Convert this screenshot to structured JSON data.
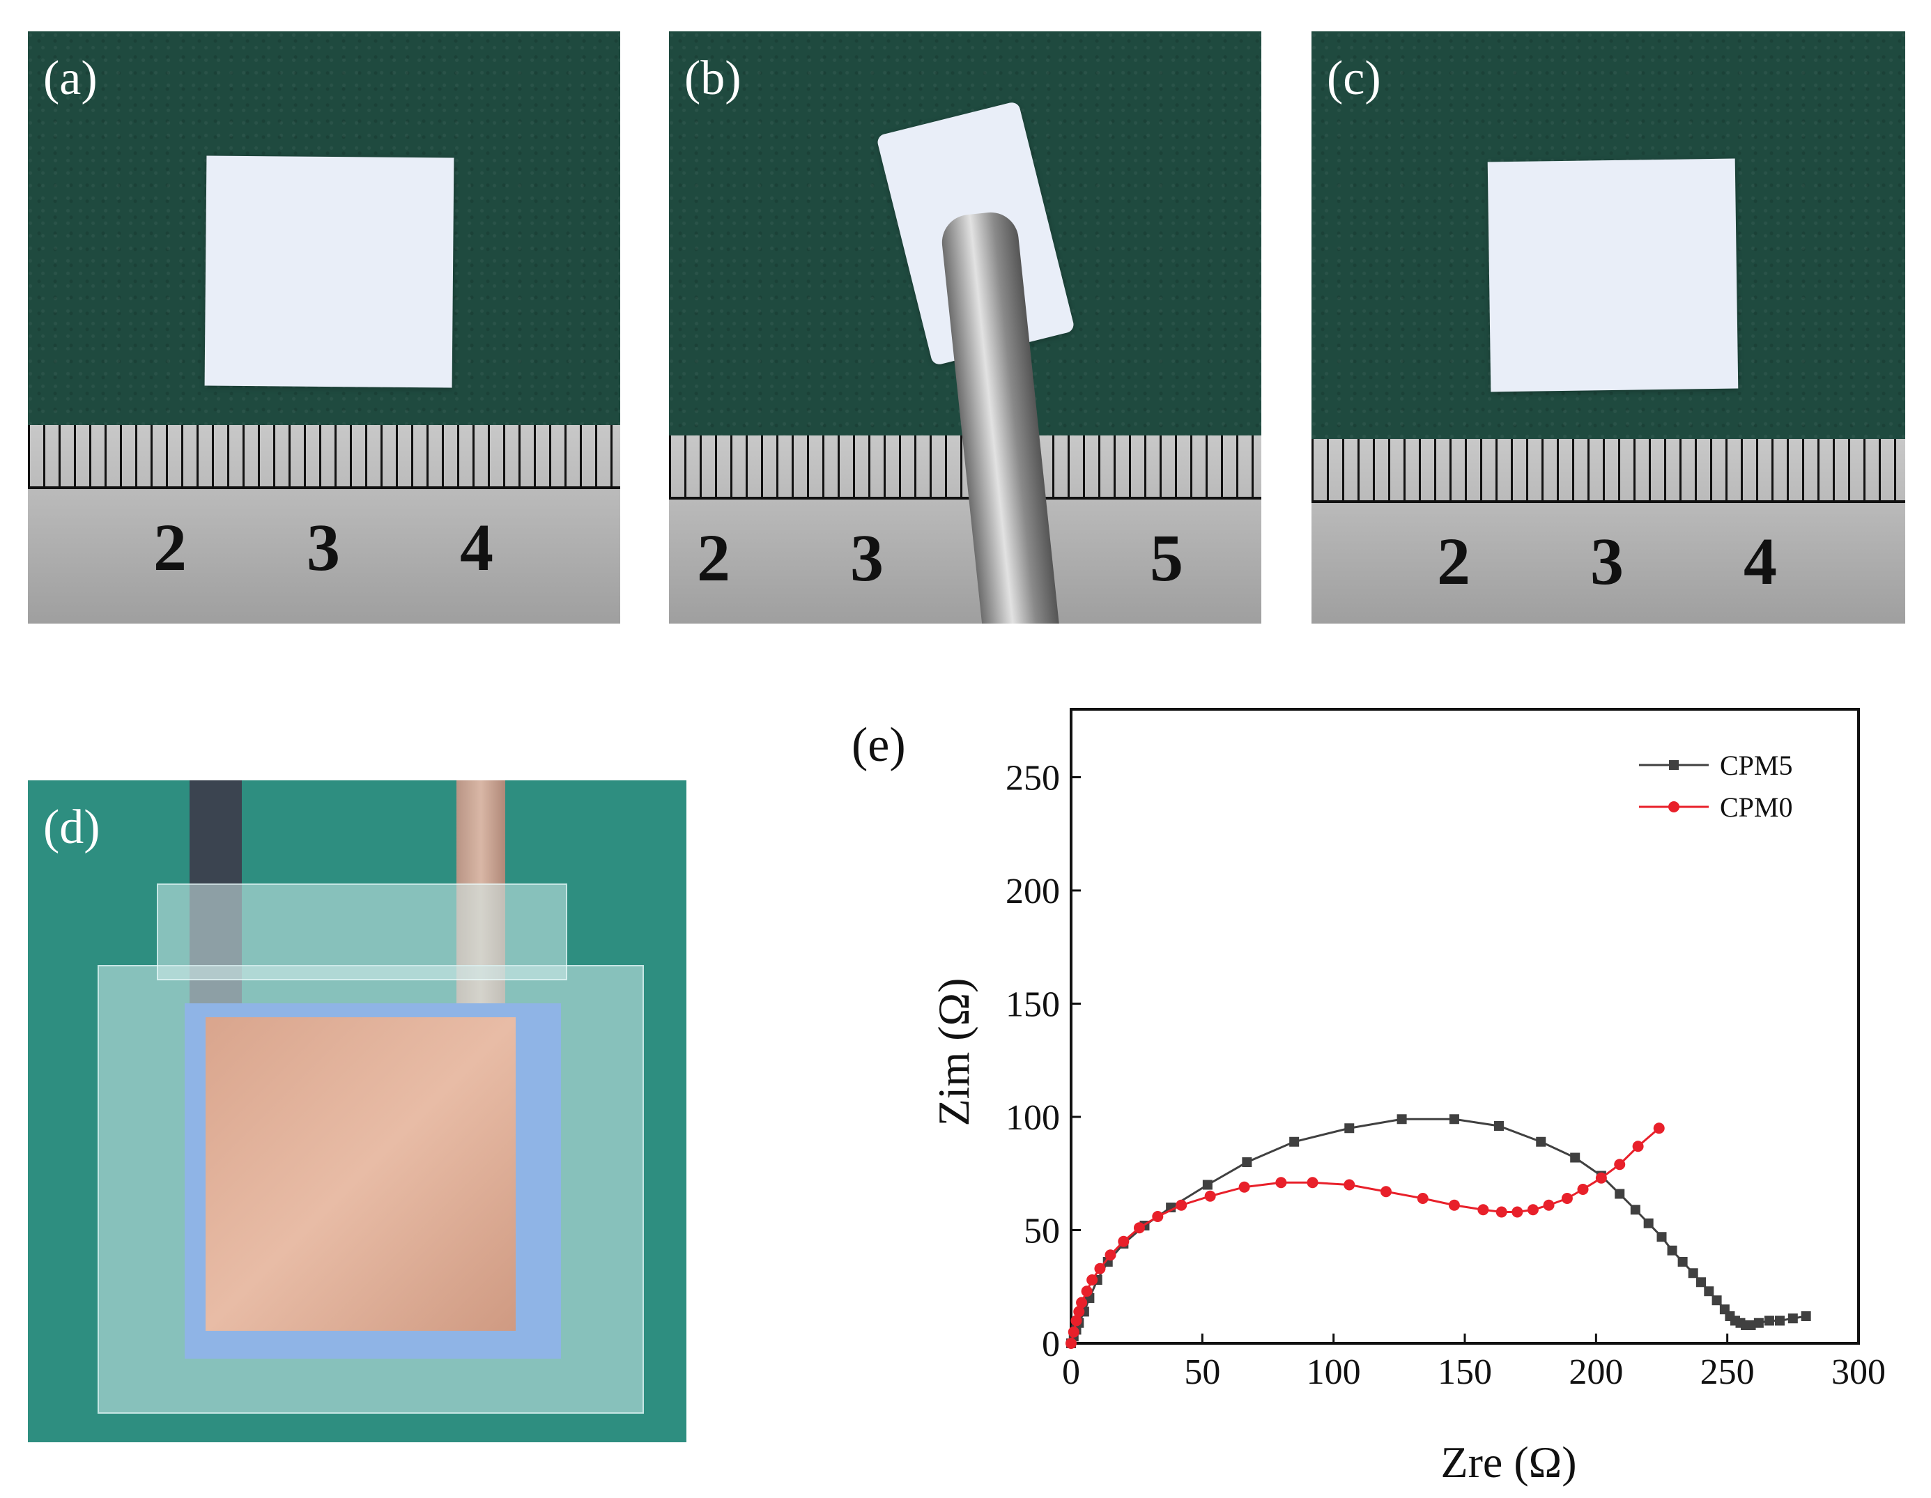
{
  "panels": {
    "a": {
      "label": "(a)",
      "ruler_numbers": [
        "2",
        "3",
        "4"
      ]
    },
    "b": {
      "label": "(b)",
      "ruler_numbers": [
        "2",
        "3",
        "5"
      ]
    },
    "c": {
      "label": "(c)",
      "ruler_numbers": [
        "2",
        "3",
        "4"
      ]
    },
    "d": {
      "label": "(d)"
    },
    "e": {
      "label": "(e)"
    }
  },
  "colors": {
    "cpm5": "#404040",
    "cpm0": "#e8202a"
  },
  "chart_data": {
    "type": "scatter",
    "title": "",
    "xlabel": "Zre (Ω)",
    "ylabel": "Zim (Ω)",
    "xlim": [
      0,
      300
    ],
    "ylim": [
      0,
      280
    ],
    "xticks": [
      "0",
      "50",
      "100",
      "150",
      "200",
      "250",
      "300"
    ],
    "yticks": [
      "0",
      "50",
      "100",
      "150",
      "200",
      "250"
    ],
    "legend_position": "top-right",
    "series": [
      {
        "name": "CPM5",
        "marker": "square",
        "color": "#404040",
        "x": [
          0,
          1,
          2,
          3,
          5,
          7,
          10,
          14,
          20,
          28,
          38,
          52,
          67,
          85,
          106,
          126,
          146,
          163,
          179,
          192,
          202,
          209,
          215,
          220,
          225,
          229,
          233,
          237,
          240,
          243,
          246,
          249,
          251,
          253,
          255,
          257,
          259,
          262,
          266,
          270,
          275,
          280
        ],
        "y": [
          0,
          3,
          6,
          9,
          14,
          20,
          28,
          36,
          44,
          52,
          60,
          70,
          80,
          89,
          95,
          99,
          99,
          96,
          89,
          82,
          74,
          66,
          59,
          53,
          47,
          41,
          36,
          31,
          27,
          23,
          19,
          15,
          12,
          10,
          9,
          8,
          8,
          9,
          10,
          10,
          11,
          12
        ]
      },
      {
        "name": "CPM0",
        "marker": "circle",
        "color": "#e8202a",
        "x": [
          0,
          1,
          2,
          3,
          4,
          6,
          8,
          11,
          15,
          20,
          26,
          33,
          42,
          53,
          66,
          80,
          92,
          106,
          120,
          134,
          146,
          157,
          164,
          170,
          176,
          182,
          189,
          195,
          202,
          209,
          216,
          224
        ],
        "y": [
          0,
          5,
          10,
          14,
          18,
          23,
          28,
          33,
          39,
          45,
          51,
          56,
          61,
          65,
          69,
          71,
          71,
          70,
          67,
          64,
          61,
          59,
          58,
          58,
          59,
          61,
          64,
          68,
          73,
          79,
          87,
          95
        ]
      }
    ]
  }
}
